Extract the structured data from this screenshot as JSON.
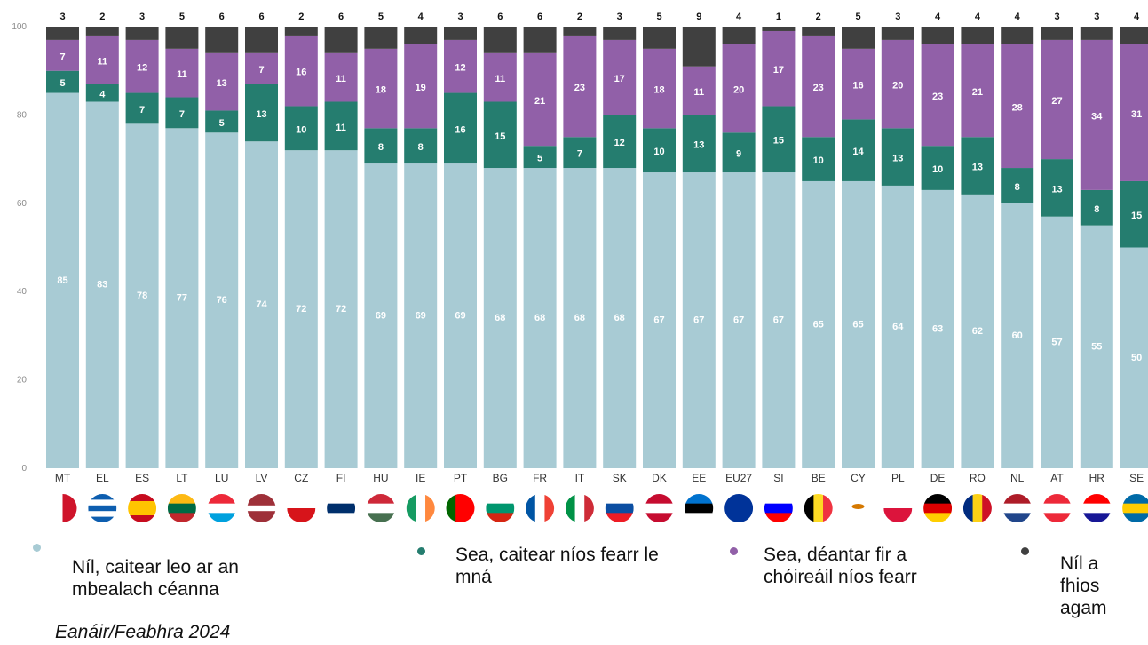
{
  "chart_data": {
    "type": "bar",
    "stacked": true,
    "ylim": [
      0,
      100
    ],
    "yticks": [
      0,
      20,
      40,
      60,
      80,
      100
    ],
    "grid": false,
    "legend_position": "bottom",
    "categories": [
      "MT",
      "EL",
      "ES",
      "LT",
      "LU",
      "LV",
      "CZ",
      "FI",
      "HU",
      "IE",
      "PT",
      "BG",
      "FR",
      "IT",
      "SK",
      "DK",
      "EE",
      "EU27",
      "SI",
      "BE",
      "CY",
      "PL",
      "DE",
      "RO",
      "NL",
      "AT",
      "HR",
      "SE"
    ],
    "series": [
      {
        "name": "Níl, caitear leo ar an mbealach céanna",
        "color": "#a8cbd4",
        "label_color": "#ffffff",
        "values": [
          85,
          83,
          78,
          77,
          76,
          74,
          72,
          72,
          69,
          69,
          69,
          68,
          68,
          68,
          68,
          67,
          67,
          67,
          67,
          65,
          65,
          64,
          63,
          62,
          60,
          57,
          55,
          50
        ]
      },
      {
        "name": "Sea, caitear níos fearr le mná",
        "color": "#257d6f",
        "label_color": "#ffffff",
        "values": [
          5,
          4,
          7,
          7,
          5,
          13,
          10,
          11,
          8,
          8,
          16,
          15,
          5,
          7,
          12,
          10,
          13,
          9,
          15,
          10,
          14,
          13,
          10,
          13,
          8,
          13,
          8,
          15
        ]
      },
      {
        "name": "Sea, déantar fir a chóireáil níos fearr",
        "color": "#9160a8",
        "label_color": "#ffffff",
        "values": [
          7,
          11,
          12,
          11,
          13,
          7,
          16,
          11,
          18,
          19,
          12,
          11,
          21,
          23,
          17,
          18,
          11,
          20,
          17,
          23,
          16,
          20,
          23,
          21,
          28,
          27,
          34,
          31
        ]
      },
      {
        "name": "Níl a fhios agam",
        "color": "#404040",
        "label_color": "#111111",
        "values": [
          3,
          2,
          3,
          5,
          6,
          6,
          2,
          6,
          5,
          4,
          3,
          6,
          6,
          2,
          3,
          5,
          9,
          4,
          1,
          2,
          5,
          3,
          4,
          4,
          4,
          3,
          3,
          4
        ]
      }
    ],
    "flags": [
      "MT",
      "EL",
      "ES",
      "LT",
      "LU",
      "LV",
      "CZ",
      "FI",
      "HU",
      "IE",
      "PT",
      "BG",
      "FR",
      "IT",
      "SK",
      "DK",
      "EE",
      "EU27",
      "SI",
      "BE",
      "CY",
      "PL",
      "DE",
      "RO",
      "NL",
      "AT",
      "HR",
      "SE"
    ]
  },
  "legend": [
    {
      "label": "Níl, caitear leo ar an mbealach céanna",
      "color": "#a8cbd4"
    },
    {
      "label": "Sea, caitear níos fearr le mná",
      "color": "#257d6f"
    },
    {
      "label": "Sea, déantar fir a chóireáil níos fearr",
      "color": "#9160a8"
    },
    {
      "label": "Níl a fhios agam",
      "color": "#404040"
    }
  ],
  "footnote": "Eanáir/Feabhra 2024"
}
